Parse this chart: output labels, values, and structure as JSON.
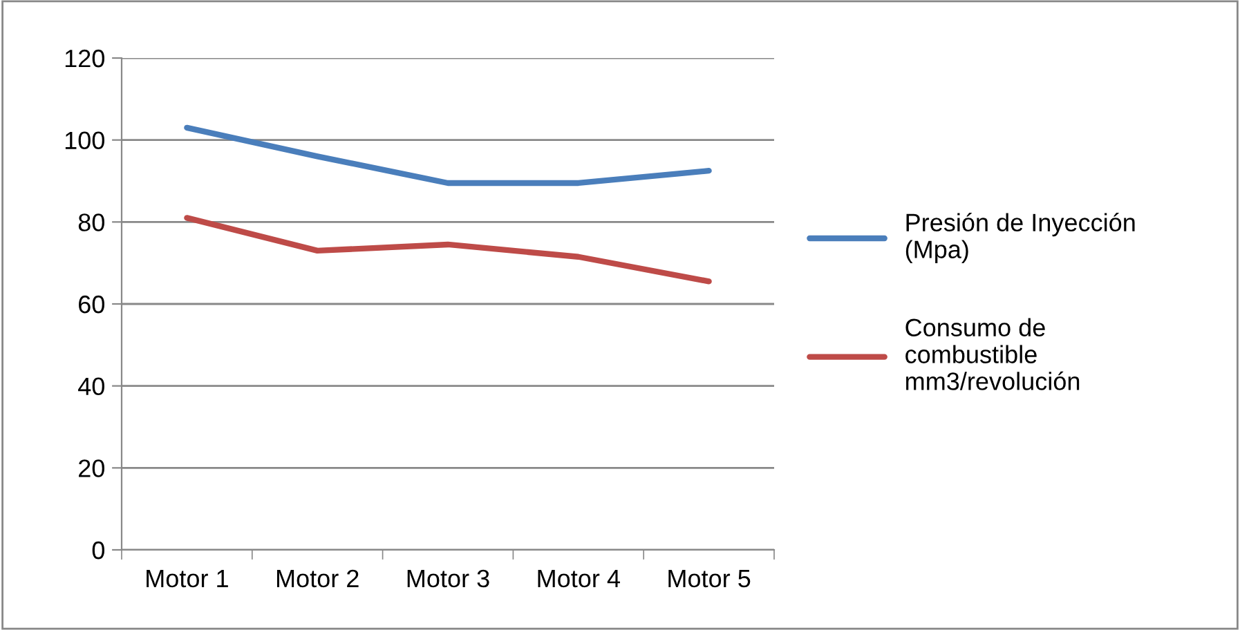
{
  "chart_data": {
    "type": "line",
    "categories": [
      "Motor 1",
      "Motor 2",
      "Motor 3",
      "Motor 4",
      "Motor 5"
    ],
    "series": [
      {
        "name": "Presión de Inyección (Mpa)",
        "color": "#4a7ebb",
        "values": [
          103,
          96,
          89.5,
          89.5,
          92.5
        ]
      },
      {
        "name": "Consumo de combustible mm3/revolución",
        "color": "#be4b48",
        "values": [
          81,
          73,
          74.5,
          71.5,
          65.5
        ]
      }
    ],
    "ylim": [
      0,
      120
    ],
    "yticks": [
      0,
      20,
      40,
      60,
      80,
      100,
      120
    ],
    "grid": "y",
    "legend": "right",
    "marker": "none",
    "line_style": "solid"
  }
}
